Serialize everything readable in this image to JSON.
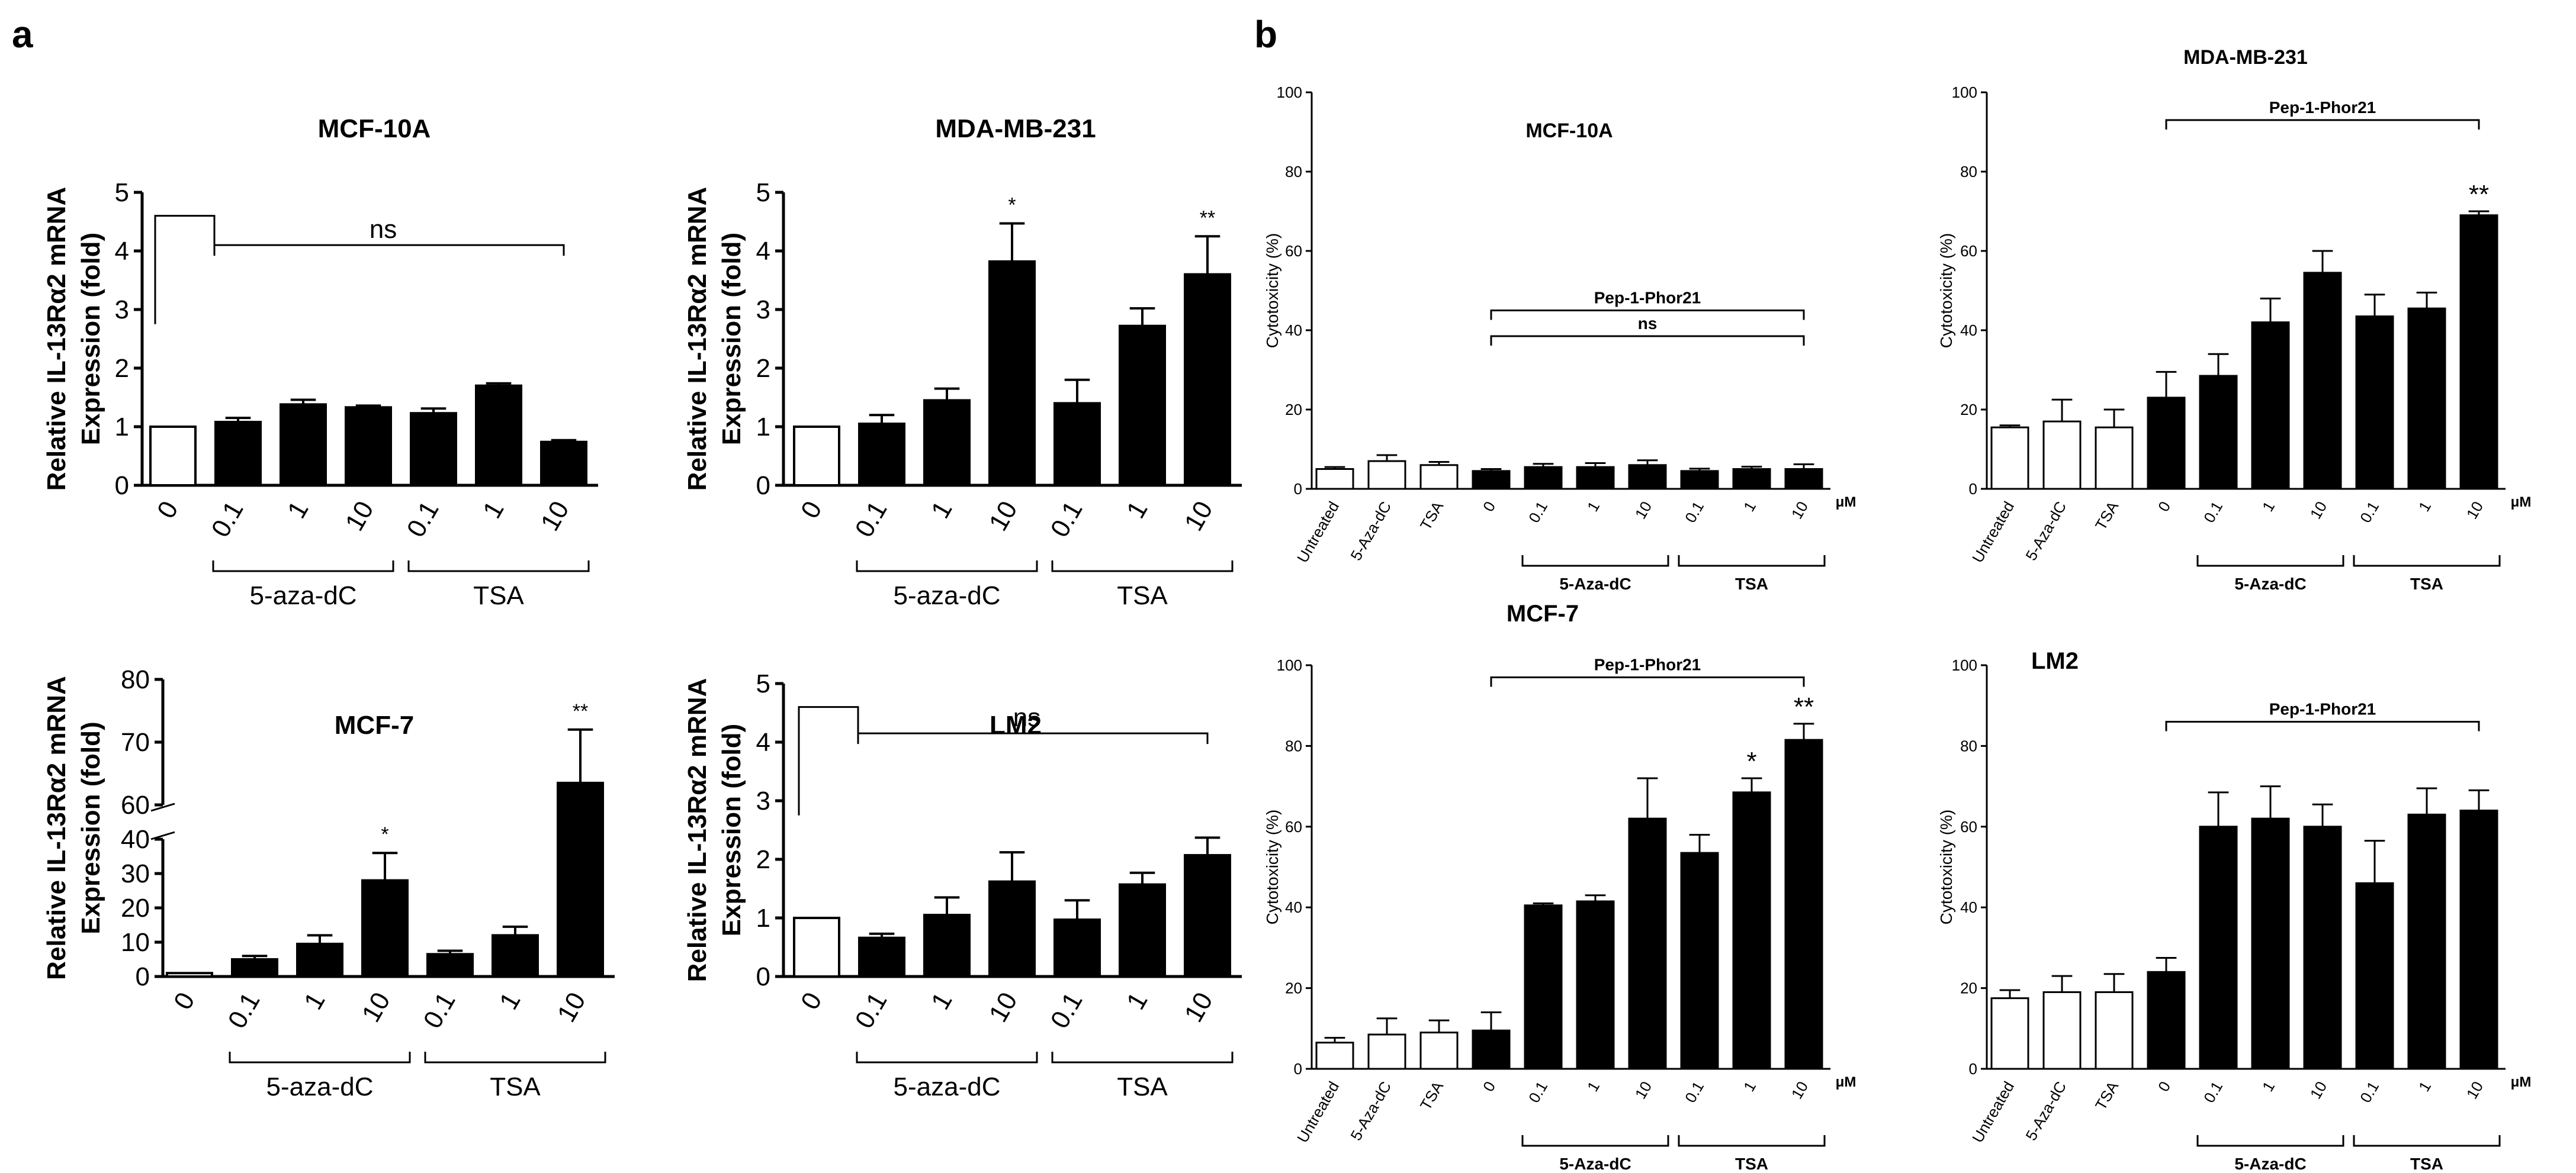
{
  "figure": {
    "panel_labels": [
      "a",
      "b"
    ]
  },
  "chart_data": [
    {
      "id": "a1",
      "type": "bar",
      "panel": "a",
      "title": "MCF-10A",
      "ylabel": "Relative IL-13Rα2 mRNA Expression (fold)",
      "ylim": [
        0,
        5
      ],
      "yticks": [
        "0",
        "1",
        "2",
        "3",
        "4",
        "5"
      ],
      "categories": [
        "0",
        "0.1",
        "1",
        "10",
        "0.1",
        "1",
        "10"
      ],
      "values": [
        1.0,
        1.08,
        1.38,
        1.33,
        1.23,
        1.7,
        0.74
      ],
      "errors": [
        0,
        0.07,
        0.08,
        0.03,
        0.08,
        0.04,
        0.03
      ],
      "fill": [
        "white",
        "black",
        "black",
        "black",
        "black",
        "black",
        "black"
      ],
      "significance": [
        "",
        "",
        "",
        "",
        "",
        "",
        ""
      ],
      "groups": [
        {
          "label": "5-aza-dC",
          "from": 1,
          "to": 3
        },
        {
          "label": "TSA",
          "from": 4,
          "to": 6
        }
      ],
      "comparison": {
        "type": "control",
        "label": "ns",
        "at": 4.1
      }
    },
    {
      "id": "a2",
      "type": "bar",
      "panel": "a",
      "title": "MDA-MB-231",
      "ylabel": "Relative IL-13Rα2 mRNA Expression (fold)",
      "ylim": [
        0,
        5
      ],
      "yticks": [
        "0",
        "1",
        "2",
        "3",
        "4",
        "5"
      ],
      "categories": [
        "0",
        "0.1",
        "1",
        "10",
        "0.1",
        "1",
        "10"
      ],
      "values": [
        1.0,
        1.05,
        1.45,
        3.82,
        1.4,
        2.72,
        3.6
      ],
      "errors": [
        0,
        0.15,
        0.2,
        0.65,
        0.4,
        0.3,
        0.65
      ],
      "fill": [
        "white",
        "black",
        "black",
        "black",
        "black",
        "black",
        "black"
      ],
      "significance": [
        "",
        "",
        "",
        "*",
        "",
        "",
        "**"
      ],
      "groups": [
        {
          "label": "5-aza-dC",
          "from": 1,
          "to": 3
        },
        {
          "label": "TSA",
          "from": 4,
          "to": 6
        }
      ]
    },
    {
      "id": "a3",
      "type": "bar",
      "panel": "a",
      "title": "MCF-7",
      "ylabel": "Relative IL-13Rα2 mRNA Expression (fold)",
      "broken_axis": {
        "lower": [
          0,
          40
        ],
        "upper": [
          60,
          80
        ]
      },
      "yticks": [
        "0",
        "10",
        "20",
        "30",
        "40",
        "60",
        "70",
        "80"
      ],
      "categories": [
        "0",
        "0.1",
        "1",
        "10",
        "0.1",
        "1",
        "10"
      ],
      "values": [
        1.0,
        5.0,
        9.5,
        28.0,
        6.5,
        12.0,
        63.5
      ],
      "errors": [
        0,
        1.0,
        2.5,
        8.0,
        1.0,
        2.5,
        8.5
      ],
      "fill": [
        "white",
        "black",
        "black",
        "black",
        "black",
        "black",
        "black"
      ],
      "significance": [
        "",
        "",
        "",
        "*",
        "",
        "",
        "**"
      ],
      "groups": [
        {
          "label": "5-aza-dC",
          "from": 1,
          "to": 3
        },
        {
          "label": "TSA",
          "from": 4,
          "to": 6
        }
      ]
    },
    {
      "id": "a4",
      "type": "bar",
      "panel": "a",
      "title": "LM2",
      "ylabel": "Relative IL-13Rα2 mRNA Expression (fold)",
      "ylim": [
        0,
        5
      ],
      "yticks": [
        "0",
        "1",
        "2",
        "3",
        "4",
        "5"
      ],
      "categories": [
        "0",
        "0.1",
        "1",
        "10",
        "0.1",
        "1",
        "10"
      ],
      "values": [
        1.0,
        0.66,
        1.05,
        1.62,
        0.97,
        1.57,
        2.07
      ],
      "errors": [
        0,
        0.07,
        0.3,
        0.5,
        0.33,
        0.2,
        0.3
      ],
      "fill": [
        "white",
        "black",
        "black",
        "black",
        "black",
        "black",
        "black"
      ],
      "significance": [
        "",
        "",
        "",
        "",
        "",
        "",
        ""
      ],
      "groups": [
        {
          "label": "5-aza-dC",
          "from": 1,
          "to": 3
        },
        {
          "label": "TSA",
          "from": 4,
          "to": 6
        }
      ],
      "comparison": {
        "type": "control",
        "label": "ns",
        "at": 4.15
      }
    },
    {
      "id": "b1",
      "type": "bar",
      "panel": "b",
      "title": "MCF-10A",
      "ylabel": "Cytotoxicity (%)",
      "ylim": [
        0,
        100
      ],
      "yticks": [
        "0",
        "20",
        "40",
        "60",
        "80",
        "100"
      ],
      "categories": [
        "Untreated",
        "5-Aza-dC",
        "TSA",
        "0",
        "0.1",
        "1",
        "10",
        "0.1",
        "1",
        "10"
      ],
      "unit": "μM",
      "values": [
        5.0,
        7.0,
        6.0,
        4.5,
        5.5,
        5.5,
        6.0,
        4.5,
        5.0,
        5.0
      ],
      "errors": [
        0.5,
        1.5,
        0.8,
        0.5,
        0.8,
        1.0,
        1.2,
        0.6,
        0.6,
        1.2
      ],
      "fill": [
        "white",
        "white",
        "white",
        "black",
        "black",
        "black",
        "black",
        "black",
        "black",
        "black"
      ],
      "significance": [
        "",
        "",
        "",
        "",
        "",
        "",
        "",
        "",
        "",
        ""
      ],
      "groups": [
        {
          "label": "5-Aza-dC",
          "from": 4,
          "to": 6
        },
        {
          "label": "TSA",
          "from": 7,
          "to": 9
        }
      ],
      "brackets": [
        {
          "label": "Pep-1-Phor21",
          "from": 3,
          "to": 9,
          "at": 45
        },
        {
          "label": "ns",
          "from": 3,
          "to": 9,
          "at": 38.5
        }
      ]
    },
    {
      "id": "b2",
      "type": "bar",
      "panel": "b",
      "title": "MDA-MB-231",
      "ylabel": "Cytotoxicity (%)",
      "ylim": [
        0,
        100
      ],
      "yticks": [
        "0",
        "20",
        "40",
        "60",
        "80",
        "100"
      ],
      "categories": [
        "Untreated",
        "5-Aza-dC",
        "TSA",
        "0",
        "0.1",
        "1",
        "10",
        "0.1",
        "1",
        "10"
      ],
      "unit": "μM",
      "values": [
        15.5,
        17.0,
        15.5,
        23.0,
        28.5,
        42.0,
        54.5,
        43.5,
        45.5,
        69.0
      ],
      "errors": [
        0.5,
        5.5,
        4.5,
        6.5,
        5.5,
        6.0,
        5.5,
        5.5,
        4.0,
        1.0
      ],
      "fill": [
        "white",
        "white",
        "white",
        "black",
        "black",
        "black",
        "black",
        "black",
        "black",
        "black"
      ],
      "significance": [
        "",
        "",
        "",
        "",
        "",
        "",
        "",
        "",
        "",
        "**"
      ],
      "groups": [
        {
          "label": "5-Aza-dC",
          "from": 4,
          "to": 6
        },
        {
          "label": "TSA",
          "from": 7,
          "to": 9
        }
      ],
      "brackets": [
        {
          "label": "Pep-1-Phor21",
          "from": 3,
          "to": 9,
          "at": 93
        }
      ]
    },
    {
      "id": "b3",
      "type": "bar",
      "panel": "b",
      "title": "MCF-7",
      "ylabel": "Cytotoxicity (%)",
      "ylim": [
        0,
        100
      ],
      "yticks": [
        "0",
        "20",
        "40",
        "60",
        "80",
        "100"
      ],
      "categories": [
        "Untreated",
        "5-Aza-dC",
        "TSA",
        "0",
        "0.1",
        "1",
        "10",
        "0.1",
        "1",
        "10"
      ],
      "unit": "μM",
      "values": [
        6.5,
        8.5,
        9.0,
        9.5,
        40.5,
        41.5,
        62.0,
        53.5,
        68.5,
        81.5
      ],
      "errors": [
        1.2,
        4.0,
        3.0,
        4.5,
        0.5,
        1.5,
        10.0,
        4.5,
        3.5,
        4.0
      ],
      "fill": [
        "white",
        "white",
        "white",
        "black",
        "black",
        "black",
        "black",
        "black",
        "black",
        "black"
      ],
      "significance": [
        "",
        "",
        "",
        "",
        "",
        "",
        "",
        "",
        "*",
        "**"
      ],
      "groups": [
        {
          "label": "5-Aza-dC",
          "from": 4,
          "to": 6
        },
        {
          "label": "TSA",
          "from": 7,
          "to": 9
        }
      ],
      "brackets": [
        {
          "label": "Pep-1-Phor21",
          "from": 3,
          "to": 9,
          "at": 97
        }
      ]
    },
    {
      "id": "b4",
      "type": "bar",
      "panel": "b",
      "title": "LM2",
      "ylabel": "Cytotoxicity (%)",
      "ylim": [
        0,
        100
      ],
      "yticks": [
        "0",
        "20",
        "40",
        "60",
        "80",
        "100"
      ],
      "categories": [
        "Untreated",
        "5-Aza-dC",
        "TSA",
        "0",
        "0.1",
        "1",
        "10",
        "0.1",
        "1",
        "10"
      ],
      "unit": "μM",
      "values": [
        17.5,
        19.0,
        19.0,
        24.0,
        60.0,
        62.0,
        60.0,
        46.0,
        63.0,
        64.0
      ],
      "errors": [
        2.0,
        4.0,
        4.5,
        3.5,
        8.5,
        8.0,
        5.5,
        10.5,
        6.5,
        5.0
      ],
      "fill": [
        "white",
        "white",
        "white",
        "black",
        "black",
        "black",
        "black",
        "black",
        "black",
        "black"
      ],
      "significance": [
        "",
        "",
        "",
        "",
        "",
        "",
        "",
        "",
        "",
        ""
      ],
      "groups": [
        {
          "label": "5-Aza-dC",
          "from": 4,
          "to": 6
        },
        {
          "label": "TSA",
          "from": 7,
          "to": 9
        }
      ],
      "brackets": [
        {
          "label": "Pep-1-Phor21",
          "from": 3,
          "to": 9,
          "at": 86
        }
      ]
    }
  ]
}
